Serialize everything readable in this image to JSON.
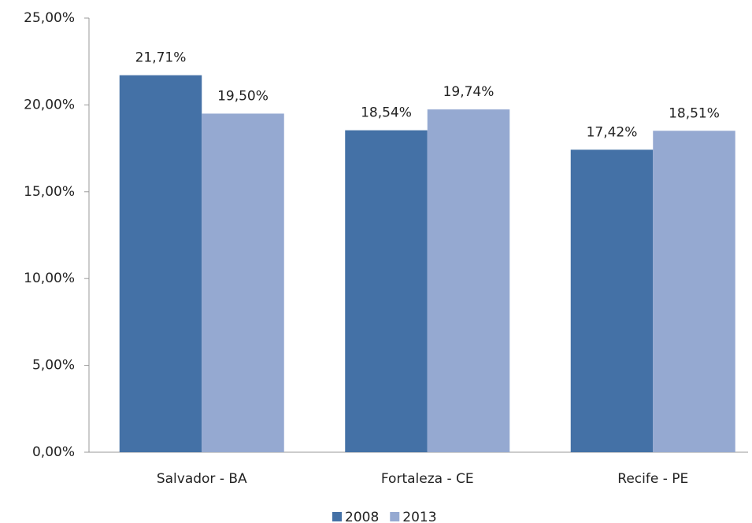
{
  "chart_data": {
    "type": "bar",
    "categories": [
      "Salvador - BA",
      "Fortaleza - CE",
      "Recife - PE"
    ],
    "series": [
      {
        "name": "2008",
        "color": "#4471a6",
        "values": [
          21.71,
          18.54,
          17.42
        ],
        "value_labels": [
          "21,71%",
          "18,54%",
          "17,42%"
        ]
      },
      {
        "name": "2013",
        "color": "#95a9d1",
        "values": [
          19.5,
          19.74,
          18.51
        ],
        "value_labels": [
          "19,50%",
          "19,74%",
          "18,51%"
        ]
      }
    ],
    "ylim": [
      0,
      25
    ],
    "yticks": [
      {
        "value": 0,
        "label": "0,00%"
      },
      {
        "value": 5,
        "label": "5,00%"
      },
      {
        "value": 10,
        "label": "10,00%"
      },
      {
        "value": 15,
        "label": "15,00%"
      },
      {
        "value": 20,
        "label": "20,00%"
      },
      {
        "value": 25,
        "label": "25,00%"
      }
    ],
    "legend": "bottom"
  }
}
